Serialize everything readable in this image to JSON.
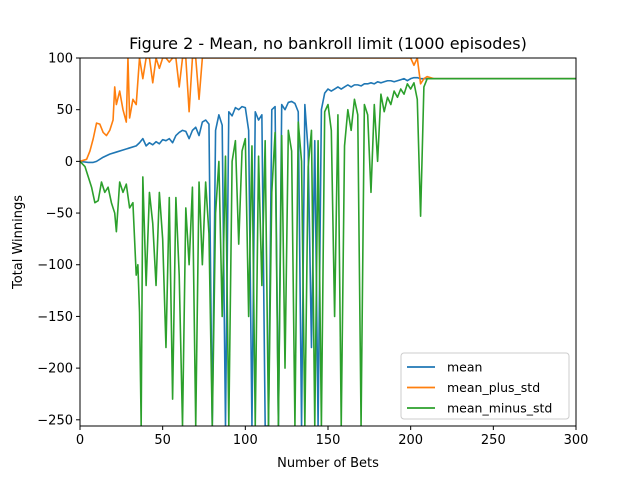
{
  "chart_data": {
    "type": "line",
    "title": "Figure 2 - Mean, no bankroll limit (1000 episodes)",
    "xlabel": "Number of Bets",
    "ylabel": "Total Winnings",
    "xlim": [
      0,
      300
    ],
    "ylim": [
      -256,
      100
    ],
    "x_ticks": [
      0,
      50,
      100,
      150,
      200,
      250,
      300
    ],
    "x_tick_labels": [
      "0",
      "50",
      "100",
      "150",
      "200",
      "250",
      "300"
    ],
    "y_ticks": [
      100,
      50,
      0,
      -50,
      -100,
      -150,
      -200,
      -250
    ],
    "y_tick_labels": [
      "100",
      "50",
      "0",
      "−50",
      "−100",
      "−150",
      "−200",
      "−250"
    ],
    "grid": false,
    "legend_position": "lower-right",
    "series": [
      {
        "name": "mean",
        "color": "#1f77b4",
        "points": [
          [
            0,
            0
          ],
          [
            5,
            -1
          ],
          [
            8,
            -1
          ],
          [
            10,
            0
          ],
          [
            14,
            4
          ],
          [
            18,
            7
          ],
          [
            22,
            9
          ],
          [
            26,
            11
          ],
          [
            30,
            13
          ],
          [
            34,
            15
          ],
          [
            36,
            18
          ],
          [
            38,
            22
          ],
          [
            40,
            15
          ],
          [
            42,
            18
          ],
          [
            44,
            16
          ],
          [
            46,
            19
          ],
          [
            48,
            17
          ],
          [
            50,
            21
          ],
          [
            52,
            20
          ],
          [
            54,
            22
          ],
          [
            56,
            18
          ],
          [
            58,
            25
          ],
          [
            60,
            28
          ],
          [
            62,
            30
          ],
          [
            64,
            29
          ],
          [
            66,
            22
          ],
          [
            68,
            30
          ],
          [
            70,
            33
          ],
          [
            72,
            25
          ],
          [
            74,
            38
          ],
          [
            76,
            40
          ],
          [
            78,
            36
          ],
          [
            80,
            -256
          ],
          [
            82,
            30
          ],
          [
            84,
            45
          ],
          [
            86,
            35
          ],
          [
            88,
            -256
          ],
          [
            90,
            48
          ],
          [
            92,
            44
          ],
          [
            94,
            52
          ],
          [
            96,
            50
          ],
          [
            98,
            53
          ],
          [
            100,
            52
          ],
          [
            102,
            30
          ],
          [
            104,
            -256
          ],
          [
            106,
            48
          ],
          [
            108,
            40
          ],
          [
            110,
            45
          ],
          [
            112,
            -256
          ],
          [
            114,
            -256
          ],
          [
            116,
            50
          ],
          [
            118,
            53
          ],
          [
            120,
            -256
          ],
          [
            122,
            55
          ],
          [
            124,
            50
          ],
          [
            126,
            57
          ],
          [
            128,
            58
          ],
          [
            130,
            56
          ],
          [
            132,
            48
          ],
          [
            134,
            -256
          ],
          [
            136,
            55
          ],
          [
            138,
            10
          ],
          [
            140,
            -180
          ],
          [
            142,
            20
          ],
          [
            144,
            -256
          ],
          [
            146,
            50
          ],
          [
            148,
            66
          ],
          [
            150,
            70
          ],
          [
            152,
            68
          ],
          [
            154,
            70
          ],
          [
            156,
            72
          ],
          [
            158,
            70
          ],
          [
            160,
            72
          ],
          [
            162,
            74
          ],
          [
            164,
            72
          ],
          [
            166,
            74
          ],
          [
            168,
            74
          ],
          [
            170,
            73
          ],
          [
            172,
            75
          ],
          [
            174,
            75
          ],
          [
            176,
            76
          ],
          [
            178,
            75
          ],
          [
            180,
            77
          ],
          [
            182,
            76
          ],
          [
            184,
            77
          ],
          [
            186,
            78
          ],
          [
            188,
            78
          ],
          [
            190,
            77
          ],
          [
            192,
            78
          ],
          [
            194,
            79
          ],
          [
            196,
            80
          ],
          [
            198,
            78
          ],
          [
            200,
            80
          ],
          [
            202,
            81
          ],
          [
            204,
            81
          ],
          [
            206,
            80
          ],
          [
            208,
            80
          ],
          [
            210,
            80
          ],
          [
            220,
            80
          ],
          [
            300,
            80
          ]
        ]
      },
      {
        "name": "mean_plus_std",
        "color": "#ff7f0e",
        "points": [
          [
            0,
            0
          ],
          [
            4,
            2
          ],
          [
            6,
            10
          ],
          [
            8,
            22
          ],
          [
            10,
            37
          ],
          [
            12,
            36
          ],
          [
            14,
            28
          ],
          [
            16,
            25
          ],
          [
            18,
            30
          ],
          [
            20,
            40
          ],
          [
            21,
            72
          ],
          [
            22,
            55
          ],
          [
            24,
            68
          ],
          [
            26,
            50
          ],
          [
            28,
            38
          ],
          [
            29,
            100
          ],
          [
            30,
            42
          ],
          [
            32,
            60
          ],
          [
            34,
            55
          ],
          [
            36,
            100
          ],
          [
            38,
            80
          ],
          [
            40,
            100
          ],
          [
            42,
            100
          ],
          [
            44,
            76
          ],
          [
            46,
            100
          ],
          [
            48,
            90
          ],
          [
            50,
            100
          ],
          [
            52,
            100
          ],
          [
            54,
            96
          ],
          [
            56,
            100
          ],
          [
            58,
            100
          ],
          [
            60,
            72
          ],
          [
            62,
            100
          ],
          [
            64,
            100
          ],
          [
            66,
            48
          ],
          [
            68,
            100
          ],
          [
            70,
            100
          ],
          [
            72,
            60
          ],
          [
            74,
            100
          ],
          [
            76,
            100
          ],
          [
            78,
            100
          ],
          [
            80,
            100
          ],
          [
            200,
            100
          ],
          [
            202,
            93
          ],
          [
            204,
            100
          ],
          [
            206,
            75
          ],
          [
            208,
            80
          ],
          [
            210,
            82
          ],
          [
            214,
            80
          ],
          [
            300,
            80
          ]
        ]
      },
      {
        "name": "mean_minus_std",
        "color": "#2ca02c",
        "points": [
          [
            0,
            0
          ],
          [
            3,
            -5
          ],
          [
            5,
            -15
          ],
          [
            7,
            -25
          ],
          [
            9,
            -40
          ],
          [
            11,
            -38
          ],
          [
            13,
            -20
          ],
          [
            15,
            -30
          ],
          [
            17,
            -25
          ],
          [
            19,
            -40
          ],
          [
            21,
            -50
          ],
          [
            22,
            -68
          ],
          [
            24,
            -20
          ],
          [
            26,
            -30
          ],
          [
            28,
            -22
          ],
          [
            30,
            -45
          ],
          [
            32,
            -40
          ],
          [
            34,
            -110
          ],
          [
            35,
            -100
          ],
          [
            36,
            -146
          ],
          [
            37,
            -256
          ],
          [
            38,
            -15
          ],
          [
            40,
            -120
          ],
          [
            42,
            -30
          ],
          [
            44,
            -60
          ],
          [
            46,
            -120
          ],
          [
            48,
            -30
          ],
          [
            50,
            -75
          ],
          [
            52,
            -180
          ],
          [
            54,
            -35
          ],
          [
            56,
            -230
          ],
          [
            58,
            -35
          ],
          [
            60,
            -110
          ],
          [
            62,
            -256
          ],
          [
            64,
            -45
          ],
          [
            66,
            -100
          ],
          [
            68,
            -25
          ],
          [
            70,
            -256
          ],
          [
            72,
            -20
          ],
          [
            74,
            -100
          ],
          [
            76,
            -20
          ],
          [
            78,
            -70
          ],
          [
            80,
            -256
          ],
          [
            82,
            -50
          ],
          [
            84,
            0
          ],
          [
            86,
            -150
          ],
          [
            88,
            5
          ],
          [
            90,
            -256
          ],
          [
            92,
            0
          ],
          [
            94,
            20
          ],
          [
            96,
            -80
          ],
          [
            98,
            10
          ],
          [
            100,
            22
          ],
          [
            102,
            -150
          ],
          [
            104,
            15
          ],
          [
            106,
            -256
          ],
          [
            108,
            5
          ],
          [
            110,
            -120
          ],
          [
            112,
            20
          ],
          [
            114,
            -256
          ],
          [
            116,
            -30
          ],
          [
            118,
            28
          ],
          [
            120,
            -256
          ],
          [
            122,
            25
          ],
          [
            124,
            -200
          ],
          [
            126,
            30
          ],
          [
            128,
            10
          ],
          [
            130,
            -256
          ],
          [
            132,
            38
          ],
          [
            134,
            0
          ],
          [
            136,
            -256
          ],
          [
            138,
            -5
          ],
          [
            140,
            30
          ],
          [
            142,
            -256
          ],
          [
            144,
            20
          ],
          [
            146,
            -256
          ],
          [
            148,
            48
          ],
          [
            150,
            55
          ],
          [
            152,
            30
          ],
          [
            154,
            -150
          ],
          [
            156,
            45
          ],
          [
            158,
            -256
          ],
          [
            160,
            15
          ],
          [
            162,
            50
          ],
          [
            164,
            30
          ],
          [
            166,
            60
          ],
          [
            168,
            45
          ],
          [
            170,
            -256
          ],
          [
            172,
            55
          ],
          [
            174,
            45
          ],
          [
            176,
            -30
          ],
          [
            178,
            55
          ],
          [
            180,
            0
          ],
          [
            182,
            65
          ],
          [
            184,
            48
          ],
          [
            186,
            62
          ],
          [
            188,
            55
          ],
          [
            190,
            68
          ],
          [
            192,
            62
          ],
          [
            194,
            70
          ],
          [
            196,
            65
          ],
          [
            198,
            75
          ],
          [
            200,
            70
          ],
          [
            202,
            76
          ],
          [
            204,
            60
          ],
          [
            206,
            -53
          ],
          [
            208,
            72
          ],
          [
            210,
            80
          ],
          [
            214,
            80
          ],
          [
            300,
            80
          ]
        ]
      }
    ]
  }
}
